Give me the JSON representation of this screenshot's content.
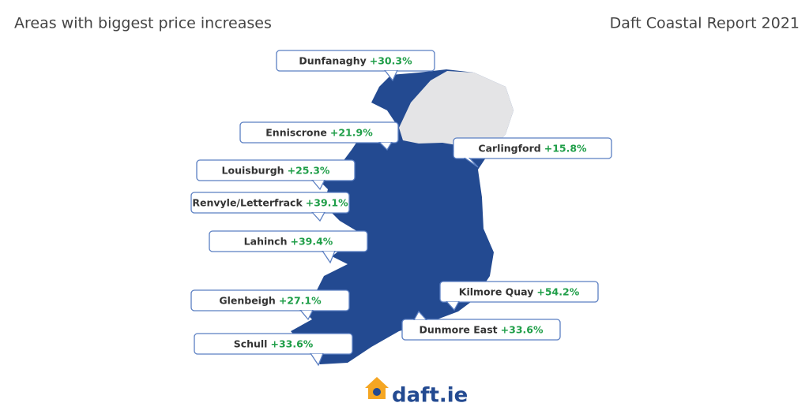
{
  "header": {
    "title": "Areas with biggest price increases",
    "report": "Daft Coastal Report 2021"
  },
  "callouts": [
    {
      "place": "Dunfanaghy",
      "change": "+30.3%"
    },
    {
      "place": "Enniscrone",
      "change": "+21.9%"
    },
    {
      "place": "Carlingford",
      "change": "+15.8%"
    },
    {
      "place": "Louisburgh",
      "change": "+25.3%"
    },
    {
      "place": "Renvyle/Letterfrack",
      "change": "+39.1%"
    },
    {
      "place": "Lahinch",
      "change": "+39.4%"
    },
    {
      "place": "Glenbeigh",
      "change": "+27.1%"
    },
    {
      "place": "Schull",
      "change": "+33.6%"
    },
    {
      "place": "Kilmore Quay",
      "change": "+54.2%"
    },
    {
      "place": "Dunmore East",
      "change": "+33.6%"
    }
  ],
  "logo": "daft.ie"
}
